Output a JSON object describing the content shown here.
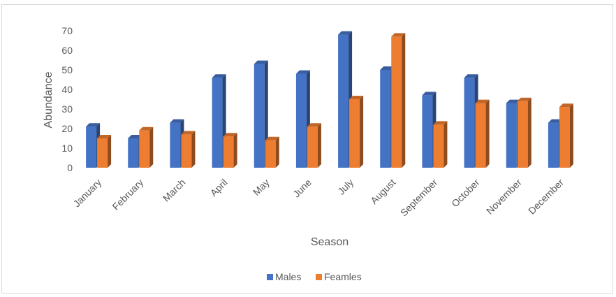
{
  "chart_data": {
    "type": "bar",
    "title": "",
    "xlabel": "Season",
    "ylabel": "Abundance",
    "ylim": [
      0,
      70
    ],
    "yticks": [
      0,
      10,
      20,
      30,
      40,
      50,
      60,
      70
    ],
    "grid": false,
    "legend_position": "bottom",
    "categories": [
      "January",
      "February",
      "March",
      "April",
      "May",
      "June",
      "July",
      "August",
      "September",
      "October",
      "November",
      "December"
    ],
    "series": [
      {
        "name": "Males",
        "color": "#4472C4",
        "values": [
          21,
          15,
          23,
          46,
          53,
          48,
          68,
          50,
          37,
          46,
          33,
          23
        ]
      },
      {
        "name": "Feamles",
        "color": "#ED7D31",
        "values": [
          15,
          19,
          17,
          16,
          14,
          21,
          35,
          67,
          22,
          33,
          34,
          31
        ]
      }
    ]
  }
}
